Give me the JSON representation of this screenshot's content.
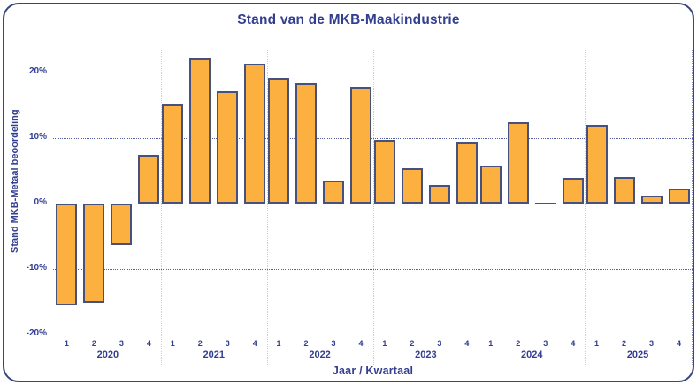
{
  "chart_data": {
    "type": "bar",
    "title": "Stand van de MKB-Maakindustrie",
    "xlabel": "Jaar / Kwartaal",
    "ylabel": "Stand MKB-Metaal beoordeling",
    "ylim": [
      -20,
      23.5
    ],
    "yticks": [
      20,
      10,
      0,
      -10,
      -20
    ],
    "ytick_labels": [
      "20%",
      "10%",
      "0%",
      "-10%",
      "-20%"
    ],
    "grid": "horizontal-dotted",
    "legend": "none",
    "bar_fill_color": "#FBB040",
    "bar_border_color": "#46517E",
    "groups": [
      {
        "year": "2020",
        "quarters": [
          "1",
          "2",
          "3",
          "4"
        ],
        "values": [
          -15.6,
          -15.1,
          -6.4,
          7.5
        ]
      },
      {
        "year": "2021",
        "quarters": [
          "1",
          "2",
          "3",
          "4"
        ],
        "values": [
          15.2,
          22.2,
          17.2,
          21.4
        ]
      },
      {
        "year": "2022",
        "quarters": [
          "1",
          "2",
          "3",
          "4"
        ],
        "values": [
          19.2,
          18.4,
          3.5,
          17.9
        ]
      },
      {
        "year": "2023",
        "quarters": [
          "1",
          "2",
          "3",
          "4"
        ],
        "values": [
          9.7,
          5.4,
          2.9,
          9.3
        ]
      },
      {
        "year": "2024",
        "quarters": [
          "1",
          "2",
          "3",
          "4"
        ],
        "values": [
          5.8,
          12.4,
          0.0,
          3.9
        ]
      },
      {
        "year": "2025",
        "quarters": [
          "1",
          "2",
          "3",
          "4"
        ],
        "values": [
          12.0,
          4.0,
          1.2,
          2.3
        ]
      }
    ]
  },
  "colors": {
    "accent_text": "#323E8F",
    "bar_fill": "#FBB040",
    "bar_border": "#46517E",
    "gridline": "#5560A4",
    "group_separator": "#C7CCE0",
    "frame_border": "#3A4677",
    "background": "#FFFFFF"
  }
}
